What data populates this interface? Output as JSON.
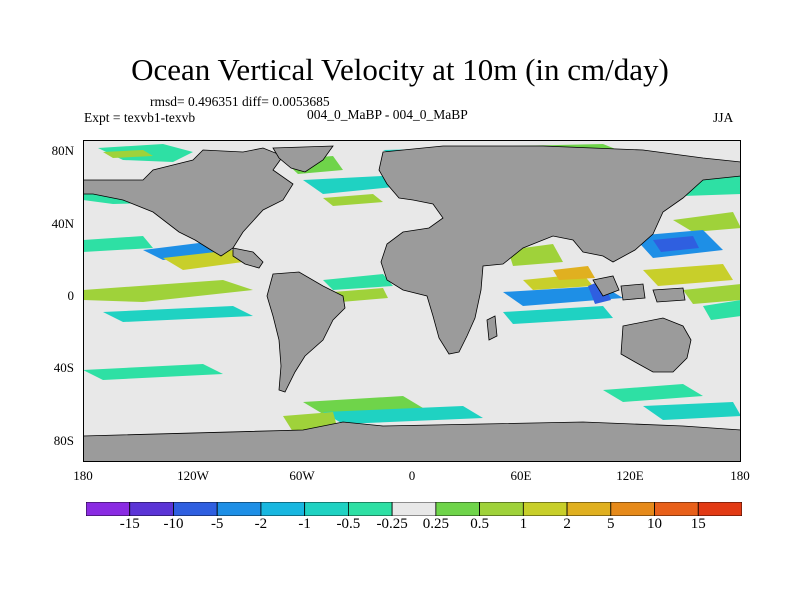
{
  "title": "Ocean Vertical Velocity at 10m (in cm/day)",
  "stats": "rmsd= 0.496351 diff= 0.0053685",
  "expt": "Expt = texvb1-texvb",
  "case": "004_0_MaBP - 004_0_MaBP",
  "season": "JJA",
  "y_ticks": [
    "80N",
    "40N",
    "0",
    "40S",
    "80S"
  ],
  "x_ticks": [
    "180",
    "120W",
    "60W",
    "0",
    "60E",
    "120E",
    "180"
  ],
  "colorbar": {
    "labels": [
      "-15",
      "-10",
      "-5",
      "-2",
      "-1",
      "-0.5",
      "-0.25",
      "0.25",
      "0.5",
      "1",
      "2",
      "5",
      "10",
      "15"
    ],
    "colors": [
      "#8a2be2",
      "#5b34d6",
      "#2f5fe0",
      "#1e8fe6",
      "#18b7e0",
      "#1fd2c2",
      "#2ee0a4",
      "#e8e8e8",
      "#6fd44a",
      "#9fd23a",
      "#c8cf2a",
      "#e0b020",
      "#e68a1a",
      "#e8601a",
      "#e23a14"
    ]
  },
  "colors": {
    "land": "#9b9b9b",
    "ocean_neutral": "#e8e8e8",
    "coast": "#000000"
  }
}
